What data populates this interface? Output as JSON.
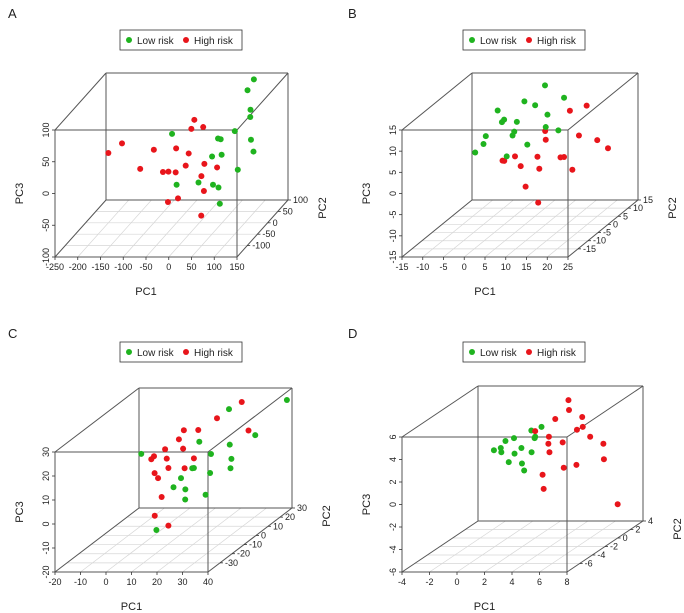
{
  "legend": {
    "low_label": "Low risk",
    "high_label": "High risk",
    "low_color": "#1fb31f",
    "high_color": "#e8151b"
  },
  "chart_data": [
    {
      "panel": "A",
      "type": "scatter3d",
      "xlabel": "PC1",
      "ylabel": "PC2",
      "zlabel": "PC3",
      "xlim": [
        -250,
        150
      ],
      "ylim": [
        -150,
        100
      ],
      "zlim": [
        -100,
        100
      ],
      "xticks": [
        -250,
        -200,
        -150,
        -100,
        -50,
        0,
        50,
        100,
        150
      ],
      "yticks": [
        -100,
        -50,
        0,
        50,
        100
      ],
      "zticks": [
        -100,
        -50,
        0,
        50,
        100
      ],
      "grid": true,
      "series": [
        {
          "name": "Low risk",
          "points": [
            [
              40,
              20,
              0
            ],
            [
              60,
              40,
              30
            ],
            [
              80,
              10,
              -20
            ],
            [
              20,
              60,
              10
            ],
            [
              50,
              -20,
              40
            ],
            [
              90,
              50,
              60
            ],
            [
              30,
              0,
              -40
            ],
            [
              70,
              80,
              80
            ],
            [
              100,
              30,
              20
            ],
            [
              10,
              40,
              -10
            ],
            [
              60,
              -40,
              -30
            ],
            [
              85,
              60,
              45
            ],
            [
              45,
              0,
              -70
            ],
            [
              110,
              20,
              5
            ],
            [
              -60,
              0,
              40
            ],
            [
              -50,
              0,
              -40
            ],
            [
              75,
              100,
              90
            ],
            [
              25,
              -60,
              -15
            ]
          ]
        },
        {
          "name": "High risk",
          "points": [
            [
              -30,
              0,
              -10
            ],
            [
              -60,
              20,
              10
            ],
            [
              -10,
              -30,
              20
            ],
            [
              0,
              10,
              -30
            ],
            [
              -80,
              0,
              -20
            ],
            [
              -40,
              50,
              30
            ],
            [
              20,
              -20,
              0
            ],
            [
              -20,
              -60,
              -40
            ],
            [
              -100,
              0,
              15
            ],
            [
              -5,
              30,
              40
            ],
            [
              -50,
              -40,
              -5
            ],
            [
              10,
              0,
              -50
            ],
            [
              -70,
              40,
              -35
            ],
            [
              30,
              20,
              -20
            ],
            [
              -200,
              0,
              10
            ],
            [
              -170,
              0,
              25
            ],
            [
              -130,
              0,
              -15
            ],
            [
              40,
              -80,
              -60
            ],
            [
              -20,
              20,
              55
            ],
            [
              -60,
              -20,
              -60
            ]
          ]
        }
      ]
    },
    {
      "panel": "B",
      "type": "scatter3d",
      "xlabel": "PC1",
      "ylabel": "PC2",
      "zlabel": "PC3",
      "xlim": [
        -15,
        25
      ],
      "ylim": [
        -20,
        15
      ],
      "zlim": [
        -15,
        15
      ],
      "xticks": [
        -15,
        -10,
        -5,
        0,
        5,
        10,
        15,
        20,
        25
      ],
      "yticks": [
        -15,
        -10,
        -5,
        0,
        5,
        10,
        15
      ],
      "zticks": [
        -15,
        -10,
        -5,
        0,
        5,
        10,
        15
      ],
      "grid": true,
      "series": [
        {
          "name": "Low risk",
          "points": [
            [
              2,
              0,
              6
            ],
            [
              -2,
              3,
              8
            ],
            [
              4,
              -2,
              10
            ],
            [
              0,
              5,
              5
            ],
            [
              -5,
              0,
              4
            ],
            [
              6,
              3,
              12
            ],
            [
              8,
              5,
              9
            ],
            [
              -3,
              -3,
              7
            ],
            [
              1,
              8,
              11
            ],
            [
              10,
              0,
              8
            ],
            [
              -7,
              0,
              2
            ],
            [
              3,
              -5,
              3
            ],
            [
              5,
              10,
              14
            ],
            [
              12,
              5,
              13
            ],
            [
              -1,
              2,
              9
            ],
            [
              7,
              -3,
              5
            ],
            [
              -4,
              5,
              10
            ],
            [
              14,
              -2,
              8
            ]
          ]
        },
        {
          "name": "High risk",
          "points": [
            [
              8,
              0,
              1
            ],
            [
              5,
              -5,
              3
            ],
            [
              12,
              5,
              -1
            ],
            [
              10,
              0,
              5
            ],
            [
              3,
              2,
              -2
            ],
            [
              15,
              -3,
              2
            ],
            [
              6,
              8,
              4
            ],
            [
              14,
              5,
              -4
            ],
            [
              0,
              0,
              0
            ],
            [
              18,
              0,
              6
            ],
            [
              9,
              -8,
              -3
            ],
            [
              2,
              -5,
              2
            ],
            [
              11,
              10,
              8
            ],
            [
              20,
              5,
              3
            ],
            [
              25,
              0,
              3
            ],
            [
              13,
              -10,
              -6
            ],
            [
              7,
              3,
              -3
            ],
            [
              16,
              8,
              10
            ]
          ]
        }
      ]
    },
    {
      "panel": "C",
      "type": "scatter3d",
      "xlabel": "PC1",
      "ylabel": "PC2",
      "zlabel": "PC3",
      "xlim": [
        -20,
        40
      ],
      "ylim": [
        -40,
        30
      ],
      "zlim": [
        -20,
        30
      ],
      "xticks": [
        -20,
        -10,
        0,
        10,
        20,
        30,
        40
      ],
      "yticks": [
        -30,
        -20,
        -10,
        0,
        10,
        20,
        30
      ],
      "zticks": [
        -20,
        -10,
        0,
        10,
        20,
        30
      ],
      "grid": true,
      "series": [
        {
          "name": "Low risk",
          "points": [
            [
              15,
              0,
              8
            ],
            [
              18,
              -5,
              10
            ],
            [
              20,
              5,
              12
            ],
            [
              12,
              -3,
              5
            ],
            [
              22,
              0,
              6
            ],
            [
              25,
              10,
              14
            ],
            [
              17,
              -10,
              3
            ],
            [
              28,
              5,
              10
            ],
            [
              10,
              -5,
              2
            ],
            [
              14,
              8,
              16
            ],
            [
              30,
              0,
              8
            ],
            [
              24,
              -8,
              0
            ],
            [
              35,
              10,
              18
            ],
            [
              20,
              20,
              25
            ],
            [
              8,
              -15,
              -12
            ],
            [
              38,
              30,
              25
            ],
            [
              16,
              -8,
              -2
            ],
            [
              -5,
              0,
              14
            ]
          ]
        },
        {
          "name": "High risk",
          "points": [
            [
              5,
              0,
              12
            ],
            [
              2,
              5,
              14
            ],
            [
              8,
              -5,
              10
            ],
            [
              0,
              0,
              13
            ],
            [
              10,
              3,
              15
            ],
            [
              4,
              -8,
              9
            ],
            [
              6,
              8,
              17
            ],
            [
              -2,
              2,
              11
            ],
            [
              12,
              0,
              8
            ],
            [
              3,
              -3,
              5
            ],
            [
              7,
              10,
              20
            ],
            [
              15,
              5,
              22
            ],
            [
              20,
              10,
              25
            ],
            [
              25,
              20,
              28
            ],
            [
              30,
              15,
              18
            ],
            [
              5,
              -10,
              -8
            ],
            [
              8,
              -5,
              -14
            ],
            [
              3,
              0,
              -4
            ],
            [
              18,
              -5,
              14
            ]
          ]
        }
      ]
    },
    {
      "panel": "D",
      "type": "scatter3d",
      "xlabel": "PC1",
      "ylabel": "PC2",
      "zlabel": "PC3",
      "xlim": [
        -4,
        8
      ],
      "ylim": [
        -8,
        4
      ],
      "zlim": [
        -6,
        6
      ],
      "xticks": [
        -4,
        -2,
        0,
        2,
        4,
        6,
        8
      ],
      "yticks": [
        -6,
        -4,
        -2,
        0,
        2,
        4
      ],
      "zticks": [
        -6,
        -4,
        -2,
        0,
        2,
        4,
        6
      ],
      "grid": true,
      "series": [
        {
          "name": "Low risk",
          "points": [
            [
              1,
              0,
              2
            ],
            [
              0,
              -1,
              2
            ],
            [
              1.5,
              1,
              2.5
            ],
            [
              0.5,
              0,
              1.5
            ],
            [
              -0.5,
              0,
              2
            ],
            [
              2,
              0,
              3
            ],
            [
              1,
              -2,
              1.5
            ],
            [
              0,
              1,
              2.5
            ],
            [
              1.5,
              -1,
              1
            ],
            [
              2,
              1,
              3.5
            ],
            [
              -1,
              0,
              1.8
            ],
            [
              0.8,
              2,
              2.8
            ],
            [
              1.2,
              0,
              0
            ],
            [
              0.3,
              -1,
              3
            ],
            [
              2.2,
              -1,
              2
            ]
          ]
        },
        {
          "name": "High risk",
          "points": [
            [
              4,
              0,
              2.5
            ],
            [
              3,
              0,
              3
            ],
            [
              5,
              1,
              3.5
            ],
            [
              3.5,
              -1,
              2
            ],
            [
              4.5,
              2,
              4
            ],
            [
              6,
              0,
              3
            ],
            [
              2.5,
              1,
              2
            ],
            [
              5,
              -2,
              1
            ],
            [
              3,
              -1,
              0
            ],
            [
              4,
              1,
              5
            ],
            [
              6.5,
              1,
              2
            ],
            [
              5.5,
              -1,
              4
            ],
            [
              2,
              0,
              3.5
            ],
            [
              3.5,
              2,
              5.5
            ],
            [
              4,
              -3,
              -0.5
            ],
            [
              7,
              0,
              1
            ],
            [
              5,
              0,
              0.5
            ],
            [
              3,
              1,
              4.2
            ],
            [
              8,
              0,
              -3
            ]
          ]
        }
      ]
    }
  ]
}
